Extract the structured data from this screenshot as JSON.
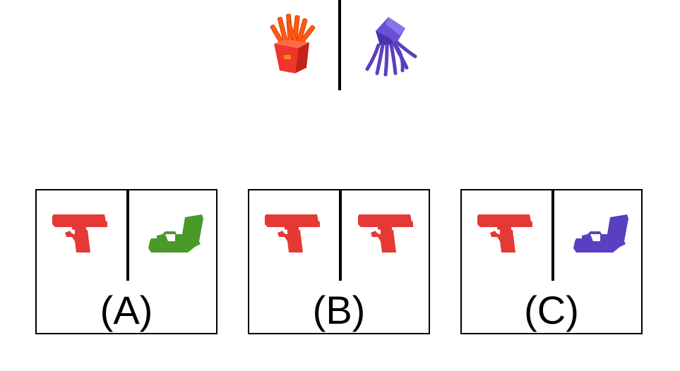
{
  "prompt": {
    "left_icon": "french-fries-icon",
    "left_color": "#e8421f",
    "right_icon": "squid-icon",
    "right_color": "#5a3fc0"
  },
  "options": [
    {
      "label": "(A)",
      "left_icon": "pistol-icon",
      "left_color": "#e53935",
      "right_icon": "pistol-icon",
      "right_color": "#4a9a2a"
    },
    {
      "label": "(B)",
      "left_icon": "pistol-icon",
      "left_color": "#e53935",
      "right_icon": "pistol-icon",
      "right_color": "#e53935"
    },
    {
      "label": "(C)",
      "left_icon": "pistol-icon",
      "left_color": "#e53935",
      "right_icon": "pistol-icon",
      "right_color": "#5a3fc0"
    }
  ]
}
